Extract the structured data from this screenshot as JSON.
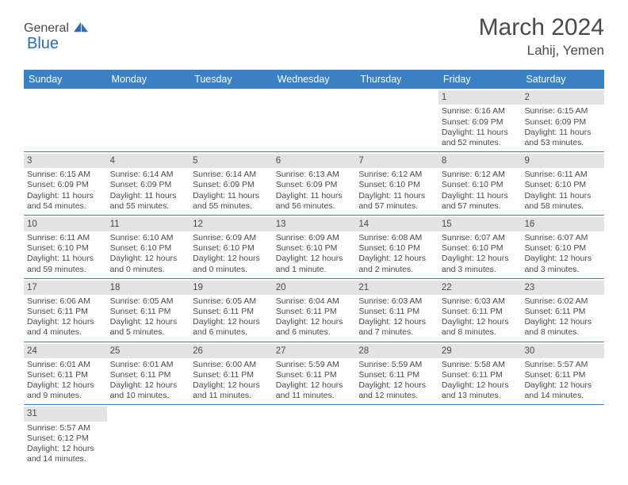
{
  "logo": {
    "text1": "General",
    "text2": "Blue"
  },
  "title": "March 2024",
  "location": "Lahij, Yemen",
  "colors": {
    "header_bg": "#3a81c4",
    "header_text": "#ffffff",
    "daynum_bg": "#e3e3e3",
    "week_border": "#3a81c4",
    "body_text": "#4a4a4a",
    "logo_blue": "#2a6db8"
  },
  "day_headers": [
    "Sunday",
    "Monday",
    "Tuesday",
    "Wednesday",
    "Thursday",
    "Friday",
    "Saturday"
  ],
  "weeks": [
    [
      {
        "n": "",
        "sr": "",
        "ss": "",
        "dl": ""
      },
      {
        "n": "",
        "sr": "",
        "ss": "",
        "dl": ""
      },
      {
        "n": "",
        "sr": "",
        "ss": "",
        "dl": ""
      },
      {
        "n": "",
        "sr": "",
        "ss": "",
        "dl": ""
      },
      {
        "n": "",
        "sr": "",
        "ss": "",
        "dl": ""
      },
      {
        "n": "1",
        "sr": "Sunrise: 6:16 AM",
        "ss": "Sunset: 6:09 PM",
        "dl": "Daylight: 11 hours and 52 minutes."
      },
      {
        "n": "2",
        "sr": "Sunrise: 6:15 AM",
        "ss": "Sunset: 6:09 PM",
        "dl": "Daylight: 11 hours and 53 minutes."
      }
    ],
    [
      {
        "n": "3",
        "sr": "Sunrise: 6:15 AM",
        "ss": "Sunset: 6:09 PM",
        "dl": "Daylight: 11 hours and 54 minutes."
      },
      {
        "n": "4",
        "sr": "Sunrise: 6:14 AM",
        "ss": "Sunset: 6:09 PM",
        "dl": "Daylight: 11 hours and 55 minutes."
      },
      {
        "n": "5",
        "sr": "Sunrise: 6:14 AM",
        "ss": "Sunset: 6:09 PM",
        "dl": "Daylight: 11 hours and 55 minutes."
      },
      {
        "n": "6",
        "sr": "Sunrise: 6:13 AM",
        "ss": "Sunset: 6:09 PM",
        "dl": "Daylight: 11 hours and 56 minutes."
      },
      {
        "n": "7",
        "sr": "Sunrise: 6:12 AM",
        "ss": "Sunset: 6:10 PM",
        "dl": "Daylight: 11 hours and 57 minutes."
      },
      {
        "n": "8",
        "sr": "Sunrise: 6:12 AM",
        "ss": "Sunset: 6:10 PM",
        "dl": "Daylight: 11 hours and 57 minutes."
      },
      {
        "n": "9",
        "sr": "Sunrise: 6:11 AM",
        "ss": "Sunset: 6:10 PM",
        "dl": "Daylight: 11 hours and 58 minutes."
      }
    ],
    [
      {
        "n": "10",
        "sr": "Sunrise: 6:11 AM",
        "ss": "Sunset: 6:10 PM",
        "dl": "Daylight: 11 hours and 59 minutes."
      },
      {
        "n": "11",
        "sr": "Sunrise: 6:10 AM",
        "ss": "Sunset: 6:10 PM",
        "dl": "Daylight: 12 hours and 0 minutes."
      },
      {
        "n": "12",
        "sr": "Sunrise: 6:09 AM",
        "ss": "Sunset: 6:10 PM",
        "dl": "Daylight: 12 hours and 0 minutes."
      },
      {
        "n": "13",
        "sr": "Sunrise: 6:09 AM",
        "ss": "Sunset: 6:10 PM",
        "dl": "Daylight: 12 hours and 1 minute."
      },
      {
        "n": "14",
        "sr": "Sunrise: 6:08 AM",
        "ss": "Sunset: 6:10 PM",
        "dl": "Daylight: 12 hours and 2 minutes."
      },
      {
        "n": "15",
        "sr": "Sunrise: 6:07 AM",
        "ss": "Sunset: 6:10 PM",
        "dl": "Daylight: 12 hours and 3 minutes."
      },
      {
        "n": "16",
        "sr": "Sunrise: 6:07 AM",
        "ss": "Sunset: 6:10 PM",
        "dl": "Daylight: 12 hours and 3 minutes."
      }
    ],
    [
      {
        "n": "17",
        "sr": "Sunrise: 6:06 AM",
        "ss": "Sunset: 6:11 PM",
        "dl": "Daylight: 12 hours and 4 minutes."
      },
      {
        "n": "18",
        "sr": "Sunrise: 6:05 AM",
        "ss": "Sunset: 6:11 PM",
        "dl": "Daylight: 12 hours and 5 minutes."
      },
      {
        "n": "19",
        "sr": "Sunrise: 6:05 AM",
        "ss": "Sunset: 6:11 PM",
        "dl": "Daylight: 12 hours and 6 minutes."
      },
      {
        "n": "20",
        "sr": "Sunrise: 6:04 AM",
        "ss": "Sunset: 6:11 PM",
        "dl": "Daylight: 12 hours and 6 minutes."
      },
      {
        "n": "21",
        "sr": "Sunrise: 6:03 AM",
        "ss": "Sunset: 6:11 PM",
        "dl": "Daylight: 12 hours and 7 minutes."
      },
      {
        "n": "22",
        "sr": "Sunrise: 6:03 AM",
        "ss": "Sunset: 6:11 PM",
        "dl": "Daylight: 12 hours and 8 minutes."
      },
      {
        "n": "23",
        "sr": "Sunrise: 6:02 AM",
        "ss": "Sunset: 6:11 PM",
        "dl": "Daylight: 12 hours and 8 minutes."
      }
    ],
    [
      {
        "n": "24",
        "sr": "Sunrise: 6:01 AM",
        "ss": "Sunset: 6:11 PM",
        "dl": "Daylight: 12 hours and 9 minutes."
      },
      {
        "n": "25",
        "sr": "Sunrise: 6:01 AM",
        "ss": "Sunset: 6:11 PM",
        "dl": "Daylight: 12 hours and 10 minutes."
      },
      {
        "n": "26",
        "sr": "Sunrise: 6:00 AM",
        "ss": "Sunset: 6:11 PM",
        "dl": "Daylight: 12 hours and 11 minutes."
      },
      {
        "n": "27",
        "sr": "Sunrise: 5:59 AM",
        "ss": "Sunset: 6:11 PM",
        "dl": "Daylight: 12 hours and 11 minutes."
      },
      {
        "n": "28",
        "sr": "Sunrise: 5:59 AM",
        "ss": "Sunset: 6:11 PM",
        "dl": "Daylight: 12 hours and 12 minutes."
      },
      {
        "n": "29",
        "sr": "Sunrise: 5:58 AM",
        "ss": "Sunset: 6:11 PM",
        "dl": "Daylight: 12 hours and 13 minutes."
      },
      {
        "n": "30",
        "sr": "Sunrise: 5:57 AM",
        "ss": "Sunset: 6:11 PM",
        "dl": "Daylight: 12 hours and 14 minutes."
      }
    ],
    [
      {
        "n": "31",
        "sr": "Sunrise: 5:57 AM",
        "ss": "Sunset: 6:12 PM",
        "dl": "Daylight: 12 hours and 14 minutes."
      },
      {
        "n": "",
        "sr": "",
        "ss": "",
        "dl": ""
      },
      {
        "n": "",
        "sr": "",
        "ss": "",
        "dl": ""
      },
      {
        "n": "",
        "sr": "",
        "ss": "",
        "dl": ""
      },
      {
        "n": "",
        "sr": "",
        "ss": "",
        "dl": ""
      },
      {
        "n": "",
        "sr": "",
        "ss": "",
        "dl": ""
      },
      {
        "n": "",
        "sr": "",
        "ss": "",
        "dl": ""
      }
    ]
  ]
}
